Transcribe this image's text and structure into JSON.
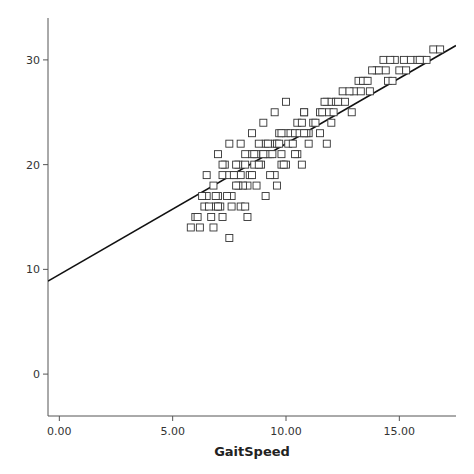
{
  "chart_data": {
    "type": "scatter",
    "xlabel": "GaitSpeed",
    "xlim": [
      -0.5,
      17.5
    ],
    "ylim": [
      -4,
      34
    ],
    "xticks": [
      {
        "value": 0,
        "label": "0.00"
      },
      {
        "value": 5,
        "label": "5.00"
      },
      {
        "value": 10,
        "label": "10.00"
      },
      {
        "value": 15,
        "label": "15.00"
      }
    ],
    "yticks": [
      0,
      10,
      20,
      30
    ],
    "series": [
      {
        "type": "scatter",
        "marker": "open-square",
        "color": "#333333",
        "x": [
          6.5,
          6.8,
          7.0,
          7.2,
          7.1,
          7.5,
          7.3,
          7.6,
          6.9,
          7.0,
          6.7,
          7.8,
          7.9,
          8.2,
          8.5,
          8.0,
          8.3,
          8.7,
          8.6,
          9.0,
          9.1,
          9.3,
          9.5,
          9.7,
          9.8,
          10.0,
          10.2,
          10.5,
          10.8,
          11.0,
          11.5,
          11.8,
          12.0,
          12.5,
          13.0,
          13.5,
          14.0,
          14.5,
          15.0,
          15.5,
          16.0,
          16.5,
          6.0,
          6.2,
          6.4,
          7.4,
          7.6,
          8.1,
          8.4,
          8.9,
          9.2,
          9.6,
          10.1,
          10.4,
          10.7,
          11.2,
          11.6,
          12.2,
          12.8,
          13.2,
          13.8,
          14.3,
          14.8,
          5.8,
          6.1,
          6.6,
          7.7,
          8.8,
          9.4,
          10.3,
          10.6,
          11.3,
          11.9,
          12.6,
          13.4,
          14.1,
          15.2,
          15.8,
          6.3,
          7.9,
          9.8,
          8.5,
          9.0,
          10.9,
          11.7,
          12.3,
          13.6,
          14.6,
          15.3,
          16.2,
          6.8,
          7.2,
          8.0,
          9.1,
          9.5,
          10.0,
          10.5,
          11.0,
          11.5,
          12.0,
          8.2,
          8.7,
          9.3,
          9.9,
          10.4,
          7.5,
          8.3,
          9.6,
          10.7,
          11.8,
          12.9,
          13.7,
          14.4,
          6.9,
          7.8,
          8.6,
          9.7,
          10.8,
          12.1,
          13.3,
          16.8,
          15.9,
          14.7,
          7.0,
          7.5,
          8.0,
          8.5,
          9.0,
          9.5,
          10.0,
          7.2,
          8.2,
          9.2,
          6.5,
          7.8,
          8.8,
          9.8,
          10.8
        ],
        "values": [
          17,
          18,
          17,
          19,
          16,
          19,
          20,
          17,
          16,
          16,
          15,
          19,
          20,
          20,
          21,
          19,
          18,
          21,
          20,
          21,
          22,
          21,
          22,
          23,
          21,
          23,
          23,
          24,
          25,
          23,
          25,
          26,
          26,
          27,
          27,
          28,
          29,
          28,
          29,
          30,
          30,
          31,
          15,
          14,
          16,
          17,
          16,
          18,
          19,
          20,
          21,
          22,
          22,
          23,
          24,
          24,
          25,
          26,
          27,
          28,
          29,
          30,
          30,
          14,
          15,
          16,
          19,
          20,
          21,
          22,
          23,
          24,
          25,
          26,
          28,
          29,
          30,
          30,
          17,
          18,
          20,
          19,
          21,
          23,
          26,
          26,
          28,
          30,
          29,
          30,
          14,
          15,
          16,
          17,
          19,
          20,
          21,
          22,
          23,
          24,
          16,
          18,
          19,
          20,
          21,
          13,
          15,
          18,
          20,
          22,
          25,
          27,
          29,
          17,
          18,
          21,
          22,
          23,
          25,
          27,
          31,
          30,
          28,
          21,
          22,
          22,
          23,
          24,
          25,
          26,
          20,
          21,
          22,
          19,
          20,
          22,
          23,
          25
        ]
      },
      {
        "type": "line",
        "color": "#111111",
        "line_style": "solid",
        "x": [
          -0.5,
          17.5
        ],
        "values": [
          8.875,
          31.375
        ]
      }
    ]
  }
}
